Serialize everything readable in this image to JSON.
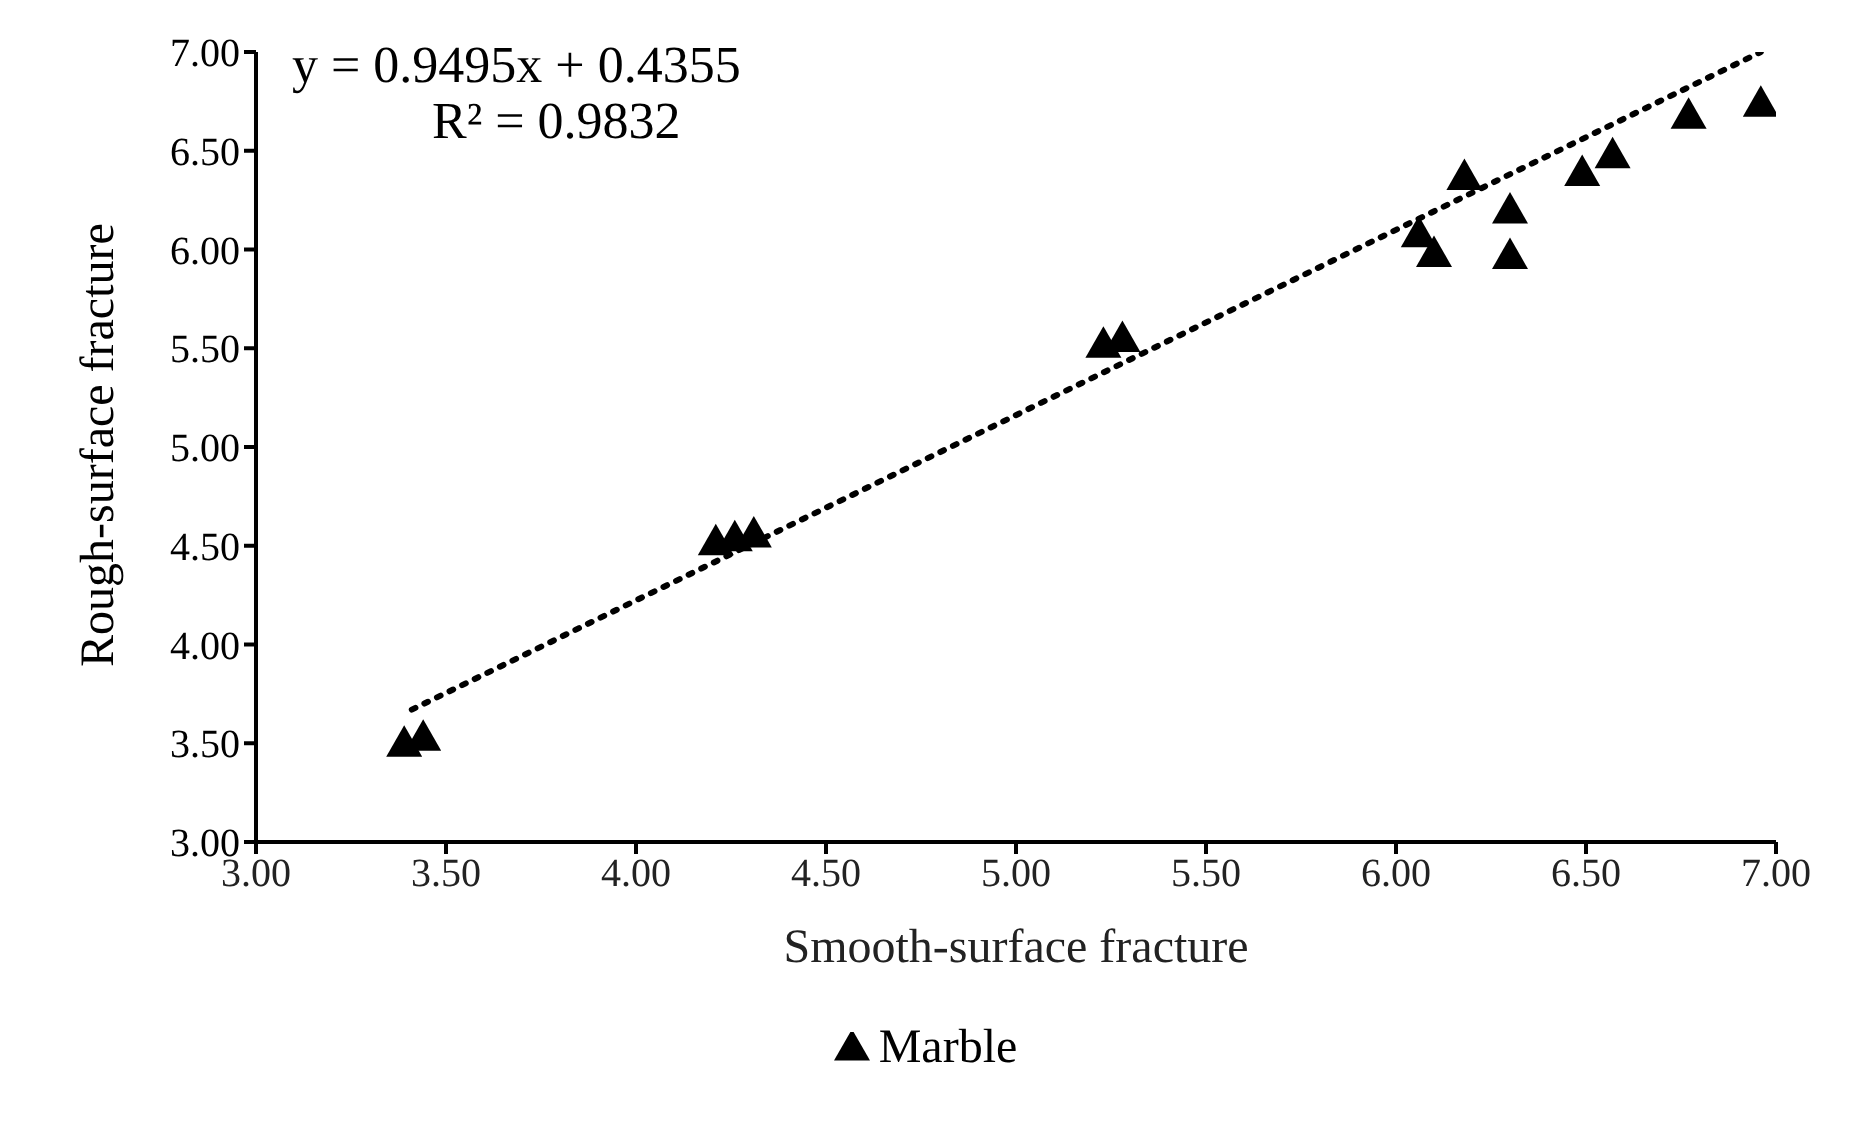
{
  "chart_data": {
    "type": "scatter",
    "xlabel": "Smooth-surface fracture",
    "ylabel": "Rough-surface fracture",
    "xlim": [
      3,
      7
    ],
    "xticks": [
      {
        "value": 3,
        "label": "3.00"
      },
      {
        "value": 3.5,
        "label": "3.50"
      },
      {
        "value": 4,
        "label": "4.00"
      },
      {
        "value": 4.5,
        "label": "4.50"
      },
      {
        "value": 5,
        "label": "5.00"
      },
      {
        "value": 5.5,
        "label": "5.50"
      },
      {
        "value": 6,
        "label": "6.00"
      },
      {
        "value": 6.5,
        "label": "6.50"
      },
      {
        "value": 7,
        "label": "7.00"
      }
    ],
    "ylim": [
      3,
      7
    ],
    "yticks": [
      {
        "value": 3,
        "label": "3.00"
      },
      {
        "value": 3.5,
        "label": "3.50"
      },
      {
        "value": 4,
        "label": "4.00"
      },
      {
        "value": 4.5,
        "label": "4.50"
      },
      {
        "value": 5,
        "label": "5.00"
      },
      {
        "value": 5.5,
        "label": "5.50"
      },
      {
        "value": 6,
        "label": "6.00"
      },
      {
        "value": 6.5,
        "label": "6.50"
      },
      {
        "value": 7,
        "label": "7.00"
      }
    ],
    "grid": false,
    "legend": "bottom",
    "marker": "triangle",
    "annotations": [
      "y = 0.9495x + 0.4355",
      "R² = 0.9832"
    ],
    "series": [
      {
        "name": "Marble",
        "color": "#000000",
        "x": [
          3.39,
          3.44,
          4.21,
          4.26,
          4.31,
          5.23,
          5.28,
          6.06,
          6.1,
          6.18,
          6.3,
          6.3,
          6.49,
          6.57,
          6.77,
          6.96
        ],
        "values": [
          3.5,
          3.53,
          4.52,
          4.54,
          4.56,
          5.52,
          5.55,
          6.08,
          5.98,
          6.37,
          6.2,
          5.97,
          6.39,
          6.48,
          6.68,
          6.74
        ]
      },
      {
        "type": "line",
        "color": "#000000",
        "marker": "none",
        "line_style": "dotted",
        "x": [
          3.41,
          6.96
        ],
        "values": [
          3.67,
          7.0
        ]
      }
    ]
  }
}
